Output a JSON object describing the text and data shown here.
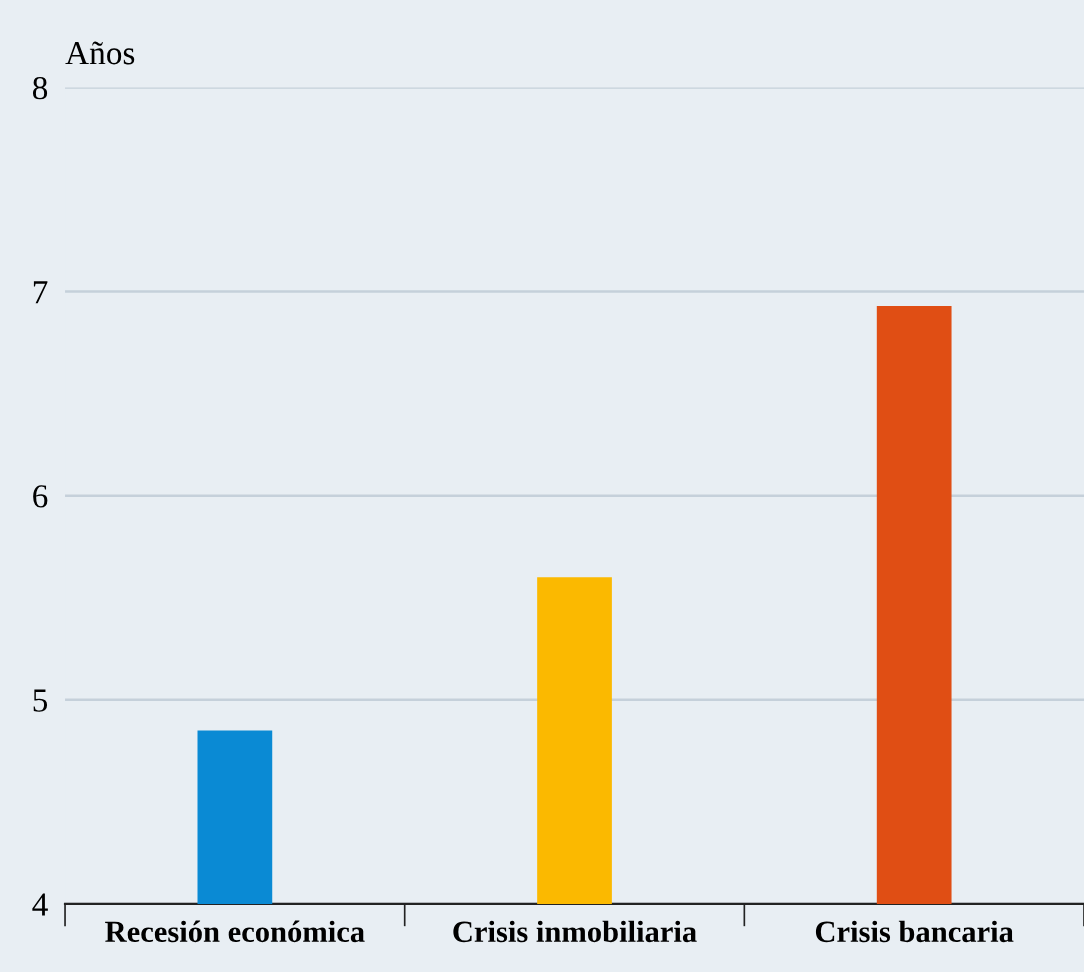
{
  "chart_data": {
    "type": "bar",
    "ylabel": "Años",
    "categories": [
      "Recesión económica",
      "Crisis inmobiliaria",
      "Crisis bancaria"
    ],
    "values": [
      4.85,
      5.6,
      6.93
    ],
    "colors": [
      "#0a8ad4",
      "#fbb900",
      "#e04e14"
    ],
    "ylim": [
      4,
      8
    ],
    "yticks": [
      4,
      5,
      6,
      7,
      8
    ],
    "grid": "y"
  }
}
